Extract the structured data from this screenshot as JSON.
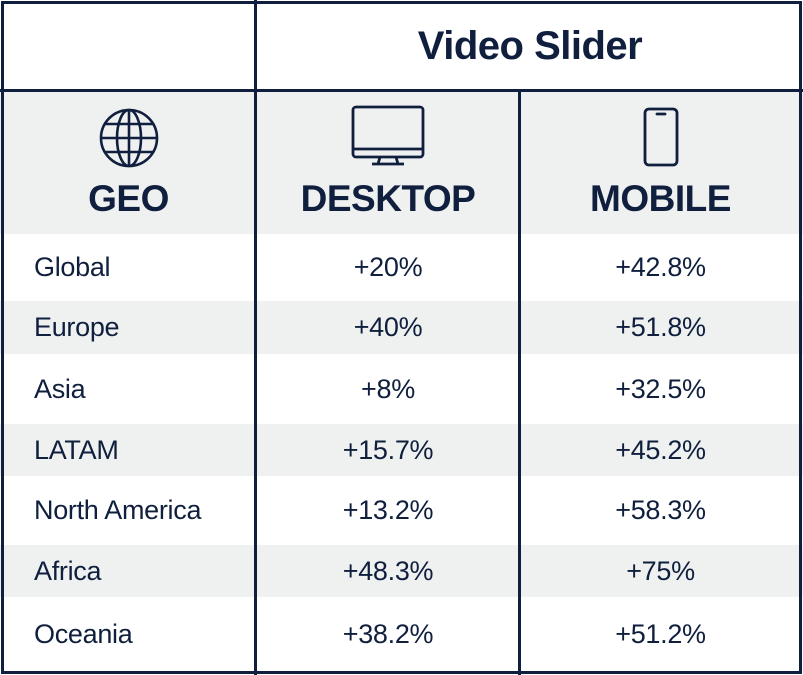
{
  "title": "Video Slider",
  "columns": {
    "geo": {
      "label": "GEO",
      "icon": "globe-icon"
    },
    "desktop": {
      "label": "DESKTOP",
      "icon": "desktop-monitor-icon"
    },
    "mobile": {
      "label": "MOBILE",
      "icon": "mobile-phone-icon"
    }
  },
  "rows": [
    {
      "geo": "Global",
      "desktop": "+20%",
      "mobile": "+42.8%"
    },
    {
      "geo": "Europe",
      "desktop": "+40%",
      "mobile": "+51.8%"
    },
    {
      "geo": "Asia",
      "desktop": "+8%",
      "mobile": "+32.5%"
    },
    {
      "geo": "LATAM",
      "desktop": "+15.7%",
      "mobile": "+45.2%"
    },
    {
      "geo": "North America",
      "desktop": "+13.2%",
      "mobile": "+58.3%"
    },
    {
      "geo": "Africa",
      "desktop": "+48.3%",
      "mobile": "+75%"
    },
    {
      "geo": "Oceania",
      "desktop": "+38.2%",
      "mobile": "+51.2%"
    }
  ],
  "colors": {
    "text": "#0f1f3d",
    "border": "#0f1f3d",
    "shade": "#eff1f1",
    "background": "#ffffff"
  },
  "chart_data": {
    "type": "table",
    "title": "Video Slider",
    "columns": [
      "GEO",
      "DESKTOP",
      "MOBILE"
    ],
    "rows": [
      [
        "Global",
        "+20%",
        "+42.8%"
      ],
      [
        "Europe",
        "+40%",
        "+51.8%"
      ],
      [
        "Asia",
        "+8%",
        "+32.5%"
      ],
      [
        "LATAM",
        "+15.7%",
        "+45.2%"
      ],
      [
        "North America",
        "+13.2%",
        "+58.3%"
      ],
      [
        "Africa",
        "+48.3%",
        "+75%"
      ],
      [
        "Oceania",
        "+38.2%",
        "+51.2%"
      ]
    ],
    "series": [
      {
        "name": "DESKTOP",
        "values": [
          20,
          40,
          8,
          15.7,
          13.2,
          48.3,
          38.2
        ]
      },
      {
        "name": "MOBILE",
        "values": [
          42.8,
          51.8,
          32.5,
          45.2,
          58.3,
          75,
          51.2
        ]
      }
    ],
    "categories": [
      "Global",
      "Europe",
      "Asia",
      "LATAM",
      "North America",
      "Africa",
      "Oceania"
    ]
  }
}
